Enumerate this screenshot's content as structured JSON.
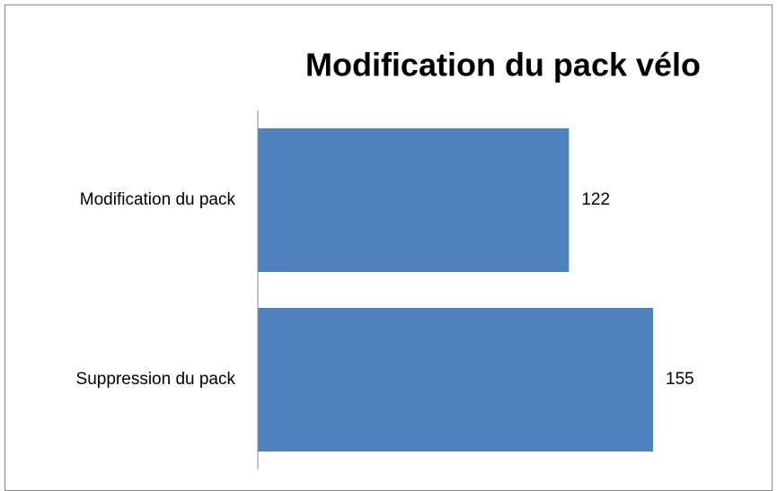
{
  "chart_data": {
    "type": "barh",
    "title": "Modification du pack vélo",
    "categories": [
      "Modification du pack",
      "Suppression du pack"
    ],
    "values": [
      122,
      155
    ],
    "color": "#4f81bd",
    "xlim": [
      0,
      180
    ]
  }
}
